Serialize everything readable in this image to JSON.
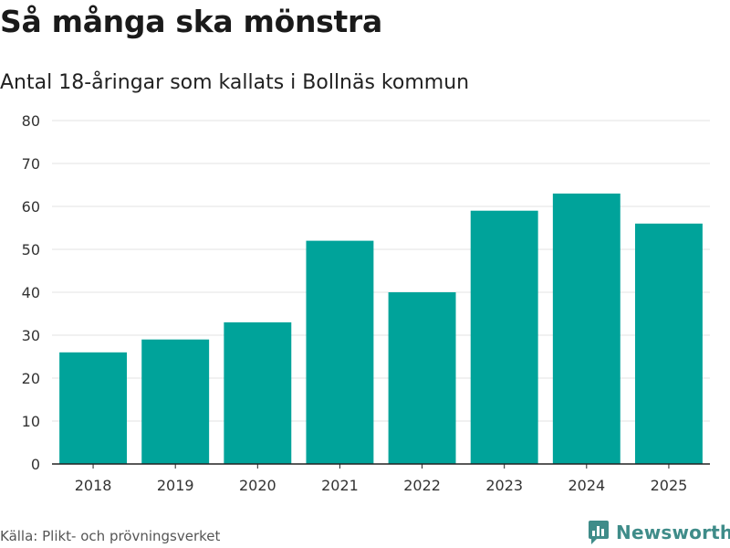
{
  "header": {
    "title": "Så många ska mönstra",
    "subtitle": "Antal 18-åringar som kallats i Bollnäs kommun"
  },
  "footer": {
    "source": "Källa: Plikt- och prövningsverket",
    "brand": "Newsworthy",
    "brand_icon": "bar-chart-icon"
  },
  "colors": {
    "bar": "#00a39a",
    "grid": "#e3e3e3",
    "axis": "#222222",
    "brand": "#3f8c89"
  },
  "chart_data": {
    "type": "bar",
    "title": "Så många ska mönstra",
    "subtitle": "Antal 18-åringar som kallats i Bollnäs kommun",
    "xlabel": "",
    "ylabel": "",
    "categories": [
      "2018",
      "2019",
      "2020",
      "2021",
      "2022",
      "2023",
      "2024",
      "2025"
    ],
    "values": [
      26,
      29,
      33,
      52,
      40,
      59,
      63,
      56
    ],
    "ylim": [
      0,
      80
    ],
    "yticks": [
      0,
      10,
      20,
      30,
      40,
      50,
      60,
      70,
      80
    ],
    "grid": true,
    "legend": "none"
  }
}
